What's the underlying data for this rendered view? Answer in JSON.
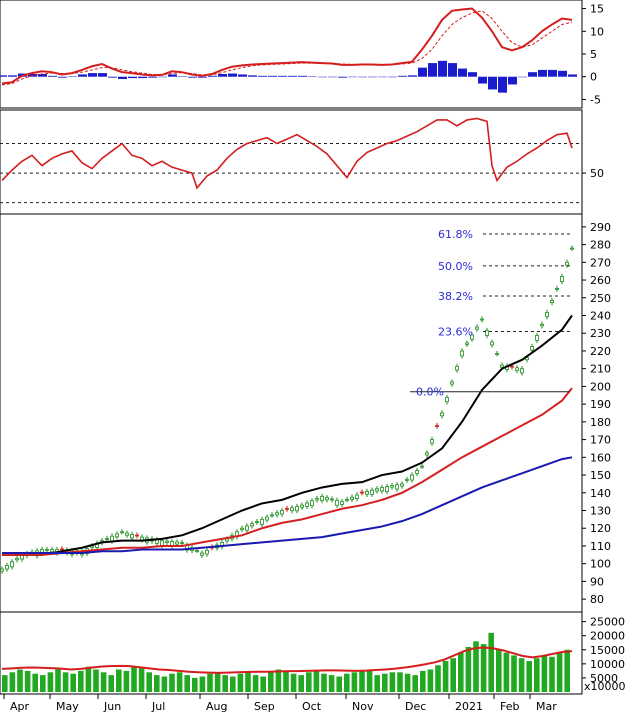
{
  "chart_data": [
    {
      "type": "line",
      "panel": "macd",
      "yticks": [
        15,
        10,
        5,
        0,
        -5
      ],
      "ylim": [
        -6,
        16
      ],
      "series": [],
      "macd_x": [
        0,
        10,
        20,
        30,
        40,
        50,
        60,
        70,
        80,
        90,
        100,
        110,
        120,
        130,
        140,
        150,
        160,
        170,
        180,
        190,
        200,
        210,
        220,
        230,
        240,
        250,
        260,
        270,
        280,
        290,
        300,
        310,
        320,
        330,
        340,
        350,
        360,
        370,
        380,
        390,
        400,
        410,
        420,
        430,
        440,
        450,
        460,
        470,
        480,
        490,
        500,
        510,
        520,
        530,
        540,
        550,
        560,
        570
      ],
      "macd_line": [
        -1.5,
        -1.2,
        0.2,
        0.8,
        1.2,
        1.0,
        0.5,
        0.8,
        1.5,
        2.3,
        2.8,
        1.8,
        1.0,
        0.8,
        0.5,
        0.3,
        0.4,
        1.2,
        1.0,
        0.5,
        0.2,
        0.6,
        1.5,
        2.2,
        2.5,
        2.7,
        2.8,
        2.9,
        3.0,
        3.1,
        3.2,
        3.1,
        3.0,
        2.9,
        2.6,
        2.6,
        2.7,
        2.7,
        2.6,
        2.7,
        3.0,
        3.3,
        6.0,
        9.0,
        12.5,
        14.5,
        14.8,
        15.0,
        13.0,
        10.0,
        6.5,
        5.8,
        6.5,
        8.0,
        10.0,
        11.5,
        12.8,
        12.5
      ],
      "signal_line": [
        -1.8,
        -1.5,
        -0.5,
        0.2,
        0.6,
        0.8,
        0.7,
        0.7,
        1.0,
        1.5,
        2.0,
        2.0,
        1.5,
        1.1,
        0.8,
        0.5,
        0.4,
        0.7,
        0.9,
        0.7,
        0.4,
        0.4,
        0.9,
        1.5,
        2.0,
        2.4,
        2.6,
        2.7,
        2.8,
        2.9,
        3.0,
        3.0,
        3.0,
        2.9,
        2.8,
        2.7,
        2.7,
        2.7,
        2.7,
        2.7,
        2.8,
        3.0,
        4.0,
        6.0,
        9.0,
        11.5,
        13.0,
        14.0,
        14.5,
        12.8,
        10.0,
        7.5,
        6.5,
        7.0,
        8.5,
        10.0,
        11.5,
        12.0
      ],
      "histogram": [
        0.3,
        0.3,
        0.7,
        0.6,
        0.6,
        0.2,
        -0.2,
        0.1,
        0.5,
        0.8,
        0.8,
        -0.2,
        -0.5,
        -0.3,
        -0.3,
        -0.2,
        0.0,
        0.5,
        0.1,
        -0.2,
        -0.2,
        0.2,
        0.6,
        0.7,
        0.5,
        0.3,
        0.2,
        0.2,
        0.2,
        0.2,
        0.2,
        0.1,
        0.0,
        0.0,
        -0.2,
        -0.1,
        0.0,
        0.0,
        -0.1,
        0.0,
        0.2,
        0.3,
        2.0,
        3.0,
        3.5,
        3.0,
        1.8,
        1.0,
        -1.5,
        -2.8,
        -3.5,
        -1.7,
        0.0,
        1.0,
        1.5,
        1.5,
        1.3,
        0.5
      ]
    },
    {
      "type": "line",
      "panel": "rsi",
      "yticks": [
        50
      ],
      "ylim": [
        25,
        90
      ],
      "reference_lines": [
        70,
        50,
        30
      ],
      "rsi": [
        45,
        52,
        58,
        62,
        55,
        60,
        63,
        65,
        57,
        53,
        60,
        65,
        70,
        62,
        60,
        55,
        58,
        54,
        52,
        50,
        40,
        48,
        52,
        60,
        66,
        70,
        72,
        74,
        70,
        73,
        76,
        72,
        68,
        63,
        47,
        58,
        64,
        67,
        70,
        72,
        75,
        78,
        82,
        86,
        86,
        82,
        86,
        87,
        85,
        55,
        45,
        54,
        58,
        63,
        67,
        72,
        76,
        77,
        67
      ],
      "rsi_x": [
        0,
        10,
        20,
        30,
        40,
        50,
        60,
        70,
        80,
        90,
        100,
        110,
        120,
        130,
        140,
        150,
        160,
        170,
        180,
        190,
        195,
        205,
        215,
        225,
        235,
        245,
        255,
        265,
        275,
        285,
        295,
        305,
        315,
        325,
        345,
        355,
        365,
        375,
        385,
        395,
        405,
        415,
        425,
        435,
        445,
        455,
        465,
        475,
        485,
        490,
        495,
        505,
        515,
        525,
        535,
        545,
        555,
        565,
        570
      ]
    },
    {
      "type": "line",
      "panel": "price",
      "yticks": [
        290,
        280,
        270,
        260,
        250,
        240,
        230,
        220,
        210,
        200,
        190,
        180,
        170,
        160,
        150,
        140,
        130,
        120,
        110,
        100,
        90,
        80
      ],
      "ylim": [
        75,
        295
      ],
      "xlabels": [
        "Apr",
        "May",
        "Jun",
        "Jul",
        "Aug",
        "Sep",
        "Oct",
        "Nov",
        "Dec",
        "2021",
        "Feb",
        "Mar"
      ],
      "fib_levels": [
        {
          "label": "61.8%",
          "value": 286
        },
        {
          "label": "50.0%",
          "value": 268
        },
        {
          "label": "38.2%",
          "value": 251
        },
        {
          "label": "23.6%",
          "value": 231
        },
        {
          "label": "0.0%",
          "value": 197
        }
      ],
      "x": [
        0,
        20,
        40,
        60,
        80,
        100,
        120,
        140,
        160,
        180,
        200,
        220,
        240,
        260,
        280,
        300,
        320,
        340,
        360,
        380,
        400,
        420,
        440,
        460,
        480,
        500,
        520,
        540,
        560,
        570
      ],
      "close": [
        97,
        105,
        108,
        108,
        107,
        113,
        118,
        115,
        113,
        112,
        106,
        112,
        120,
        125,
        130,
        133,
        138,
        135,
        140,
        143,
        145,
        155,
        185,
        220,
        238,
        212,
        210,
        235,
        262,
        278
      ],
      "series": [
        {
          "name": "",
          "color": "#000000",
          "values": [
            105,
            105,
            105,
            107,
            109,
            112,
            113,
            113,
            114,
            116,
            120,
            125,
            130,
            134,
            136,
            140,
            143,
            145,
            146,
            150,
            152,
            157,
            165,
            180,
            198,
            210,
            215,
            223,
            232,
            240
          ]
        },
        {
          "name": "",
          "color": "#d42020",
          "values": [
            105,
            105,
            105,
            106,
            107,
            108,
            109,
            109,
            110,
            110,
            112,
            114,
            116,
            120,
            123,
            125,
            128,
            131,
            133,
            136,
            140,
            146,
            153,
            160,
            166,
            172,
            178,
            184,
            192,
            199
          ]
        },
        {
          "name": "",
          "color": "#1a1ab0",
          "values": [
            106,
            106,
            106,
            106,
            106,
            107,
            107,
            108,
            108,
            108,
            109,
            110,
            111,
            112,
            113,
            114,
            115,
            117,
            119,
            121,
            124,
            128,
            133,
            138,
            143,
            147,
            151,
            155,
            159,
            160
          ]
        }
      ]
    },
    {
      "type": "bar",
      "panel": "volume",
      "yticks": [
        25000,
        20000,
        15000,
        10000,
        5000
      ],
      "ylim": [
        0,
        27000
      ],
      "unit_label": "x10000",
      "values": [
        6000,
        7000,
        8000,
        7500,
        6500,
        6000,
        7000,
        8000,
        7000,
        6500,
        7500,
        9000,
        8000,
        7000,
        6000,
        8000,
        7500,
        9000,
        8500,
        7000,
        6000,
        5500,
        6500,
        7000,
        6000,
        5000,
        5500,
        6500,
        7000,
        6000,
        5500,
        6500,
        7000,
        6000,
        5500,
        7000,
        8000,
        7500,
        6500,
        6000,
        7000,
        7500,
        6500,
        6000,
        5500,
        6500,
        7000,
        7500,
        8000,
        6000,
        6500,
        7000,
        7000,
        6500,
        6000,
        7500,
        8000,
        9500,
        11000,
        12000,
        14000,
        16000,
        18000,
        17000,
        21000,
        15000,
        14000,
        13000,
        12000,
        11000,
        12000,
        13000,
        12500,
        14000,
        15000
      ],
      "ma": [
        8200,
        8400,
        8600,
        8700,
        8600,
        8500,
        8300,
        8000,
        8200,
        8600,
        9000,
        9200,
        9300,
        9200,
        8800,
        8400,
        8000,
        7800,
        7500,
        7200,
        7000,
        6900,
        6800,
        6900,
        7000,
        7100,
        7200,
        7200,
        7300,
        7400,
        7400,
        7500,
        7600,
        7700,
        7700,
        7600,
        7500,
        7600,
        7800,
        8000,
        8300,
        8700,
        9200,
        9800,
        10500,
        11500,
        13000,
        14500,
        15500,
        15800,
        15500,
        14800,
        13800,
        12800,
        12300,
        12800,
        13500,
        14200,
        14500
      ]
    }
  ]
}
